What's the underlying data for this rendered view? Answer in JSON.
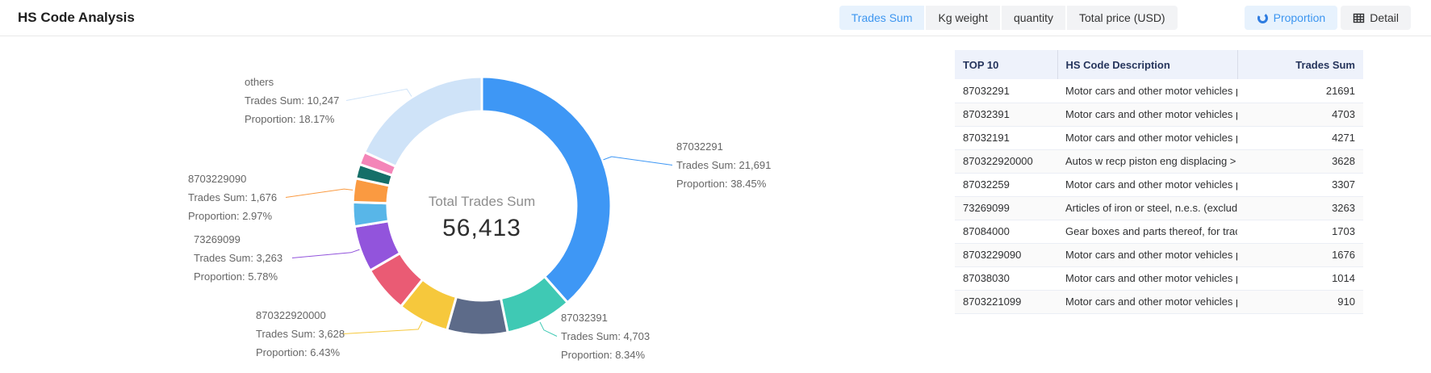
{
  "header": {
    "title": "HS Code Analysis",
    "metric_tabs": [
      {
        "label": "Trades Sum",
        "active": true
      },
      {
        "label": "Kg weight",
        "active": false
      },
      {
        "label": "quantity",
        "active": false
      },
      {
        "label": "Total price (USD)",
        "active": false
      }
    ],
    "view_tabs": [
      {
        "label": "Proportion",
        "icon": "pie-chart-icon",
        "active": true
      },
      {
        "label": "Detail",
        "icon": "table-icon",
        "active": false
      }
    ],
    "colors": {
      "active_text": "#3d96f0",
      "active_bg": "#e7f2fd",
      "inactive_bg": "#f2f3f5"
    }
  },
  "chart_data": {
    "type": "pie",
    "title": "Total Trades Sum",
    "total_label": "Total Trades Sum",
    "total_value": 56413,
    "total_value_text": "56,413",
    "label_prefixes": {
      "trades_sum": "Trades Sum: ",
      "proportion": "Proportion: "
    },
    "legend_position": "none",
    "segments": [
      {
        "code": "87032291",
        "value": 21691,
        "value_text": "21,691",
        "proportion_text": "38.45%",
        "color": "#3e97f5",
        "labeled": true
      },
      {
        "code": "87032391",
        "value": 4703,
        "value_text": "4,703",
        "proportion_text": "8.34%",
        "color": "#3fc9b4",
        "labeled": true
      },
      {
        "code": "87032191",
        "value": 4271,
        "value_text": "4,271",
        "proportion_text": "7.57%",
        "color": "#5d6b89",
        "labeled": false
      },
      {
        "code": "870322920000",
        "value": 3628,
        "value_text": "3,628",
        "proportion_text": "6.43%",
        "color": "#f6c83c",
        "labeled": true
      },
      {
        "code": "87032259",
        "value": 3307,
        "value_text": "3,307",
        "proportion_text": "5.86%",
        "color": "#ea5b74",
        "labeled": false
      },
      {
        "code": "73269099",
        "value": 3263,
        "value_text": "3,263",
        "proportion_text": "5.78%",
        "color": "#9254dc",
        "labeled": true
      },
      {
        "code": "87084000",
        "value": 1703,
        "value_text": "1,703",
        "proportion_text": "3.02%",
        "color": "#58b6e8",
        "labeled": false
      },
      {
        "code": "8703229090",
        "value": 1676,
        "value_text": "1,676",
        "proportion_text": "2.97%",
        "color": "#fa9a41",
        "labeled": true
      },
      {
        "code": "87038030",
        "value": 1014,
        "value_text": "1,014",
        "proportion_text": "1.80%",
        "color": "#156f68",
        "labeled": false
      },
      {
        "code": "8703221099",
        "value": 910,
        "value_text": "910",
        "proportion_text": "1.61%",
        "color": "#f485b8",
        "labeled": false
      },
      {
        "code": "others",
        "value": 10247,
        "value_text": "10,247",
        "proportion_text": "18.17%",
        "color": "#cfe3f8",
        "labeled": true
      }
    ]
  },
  "table": {
    "columns": [
      "TOP 10",
      "HS Code Description",
      "Trades Sum"
    ],
    "rows": [
      {
        "code": "87032291",
        "description": "Motor cars and other motor vehicles p...",
        "value": "21691"
      },
      {
        "code": "87032391",
        "description": "Motor cars and other motor vehicles p...",
        "value": "4703"
      },
      {
        "code": "87032191",
        "description": "Motor cars and other motor vehicles p...",
        "value": "4271"
      },
      {
        "code": "870322920000",
        "description": "Autos w recp piston eng displacing > ...",
        "value": "3628"
      },
      {
        "code": "87032259",
        "description": "Motor cars and other motor vehicles p...",
        "value": "3307"
      },
      {
        "code": "73269099",
        "description": "Articles of iron or steel, n.e.s. (excludi...",
        "value": "3263"
      },
      {
        "code": "87084000",
        "description": "Gear boxes and parts thereof, for tract...",
        "value": "1703"
      },
      {
        "code": "8703229090",
        "description": "Motor cars and other motor vehicles p...",
        "value": "1676"
      },
      {
        "code": "87038030",
        "description": "Motor cars and other motor vehicles p...",
        "value": "1014"
      },
      {
        "code": "8703221099",
        "description": "Motor cars and other motor vehicles p...",
        "value": "910"
      }
    ]
  }
}
